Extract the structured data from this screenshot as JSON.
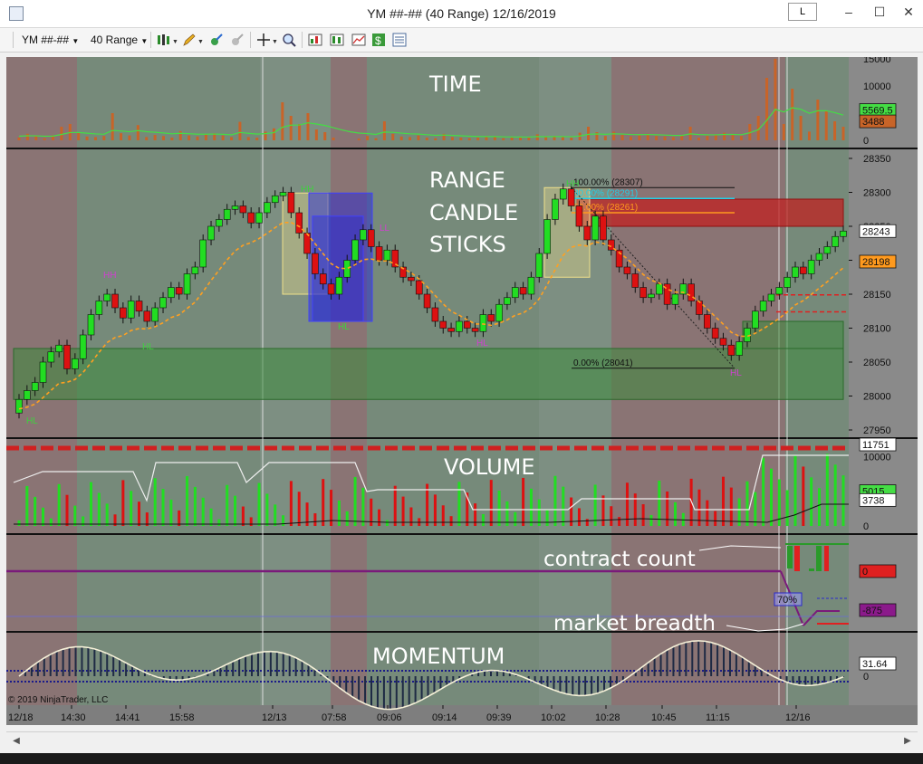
{
  "window": {
    "title": "YM ##-## (40 Range)  12/16/2019",
    "link_label": "L",
    "minimize": "–",
    "maximize": "☐",
    "close": "✕"
  },
  "toolbar": {
    "instrument": "YM ##-##",
    "interval": "40 Range"
  },
  "annotations": {
    "time": "TIME",
    "range1": "RANGE",
    "range2": "CANDLE",
    "range3": "STICKS",
    "volume": "VOLUME",
    "contract_count": "contract count",
    "market_breadth": "market breadth",
    "momentum": "MOMENTUM"
  },
  "panels": {
    "time": {
      "ticks": [
        "15000",
        "10000",
        "5000",
        "0"
      ],
      "badges": [
        {
          "value": "5569.5",
          "color": "#44dd44"
        },
        {
          "value": "3488",
          "color": "#c86428"
        }
      ]
    },
    "price": {
      "ticks": [
        "28350",
        "28300",
        "28250",
        "28200",
        "28150",
        "28100",
        "28050",
        "28000",
        "27950"
      ],
      "badges": [
        {
          "value": "28243",
          "color": "#ffffff"
        },
        {
          "value": "28198",
          "color": "#ff9a1e"
        }
      ],
      "fib": {
        "top": "100.00% (28307)",
        "l80": "80.00% (28291)",
        "l50": "50.00% (28261)",
        "bottom": "0.00% (28041)"
      },
      "swing_labels": [
        "HL",
        "HL",
        "HL",
        "HH",
        "HL",
        "HH",
        "HL",
        "HH",
        "LL"
      ]
    },
    "volume": {
      "ticks": [
        "10000",
        "5000",
        "0"
      ],
      "badges": [
        {
          "value": "11751",
          "color": "#ffffff"
        },
        {
          "value": "5015",
          "color": "#44dd44"
        },
        {
          "value": "3738",
          "color": "#ffffff"
        }
      ]
    },
    "breadth": {
      "badges": [
        {
          "value": "0",
          "color": "#e02020"
        },
        {
          "value": "-875",
          "color": "#8b1a8b"
        }
      ],
      "percent": "70%"
    },
    "momentum": {
      "ticks": [
        "0"
      ],
      "badges": [
        {
          "value": "31.64",
          "color": "#ffffff"
        }
      ]
    }
  },
  "x_axis": [
    "12/18",
    "14:30",
    "14:41",
    "15:58",
    "12/13",
    "07:58",
    "09:06",
    "09:14",
    "09:39",
    "10:02",
    "10:28",
    "10:45",
    "11:15",
    "12/16"
  ],
  "copyright": "© 2019 NinjaTrader, LLC",
  "colors": {
    "up": "#22dd22",
    "down": "#dd1111",
    "bg_red_zone": "#8a7474",
    "bg_green_zone": "#768a7a",
    "ema": "#ffa020"
  },
  "icons": [
    "app-icon",
    "bar-type-icon",
    "pencil-icon",
    "crosshair-icon",
    "zoom-icon",
    "strategy-icon",
    "indicator-icon",
    "chart-properties-icon",
    "dollar-icon",
    "data-box-icon"
  ]
}
